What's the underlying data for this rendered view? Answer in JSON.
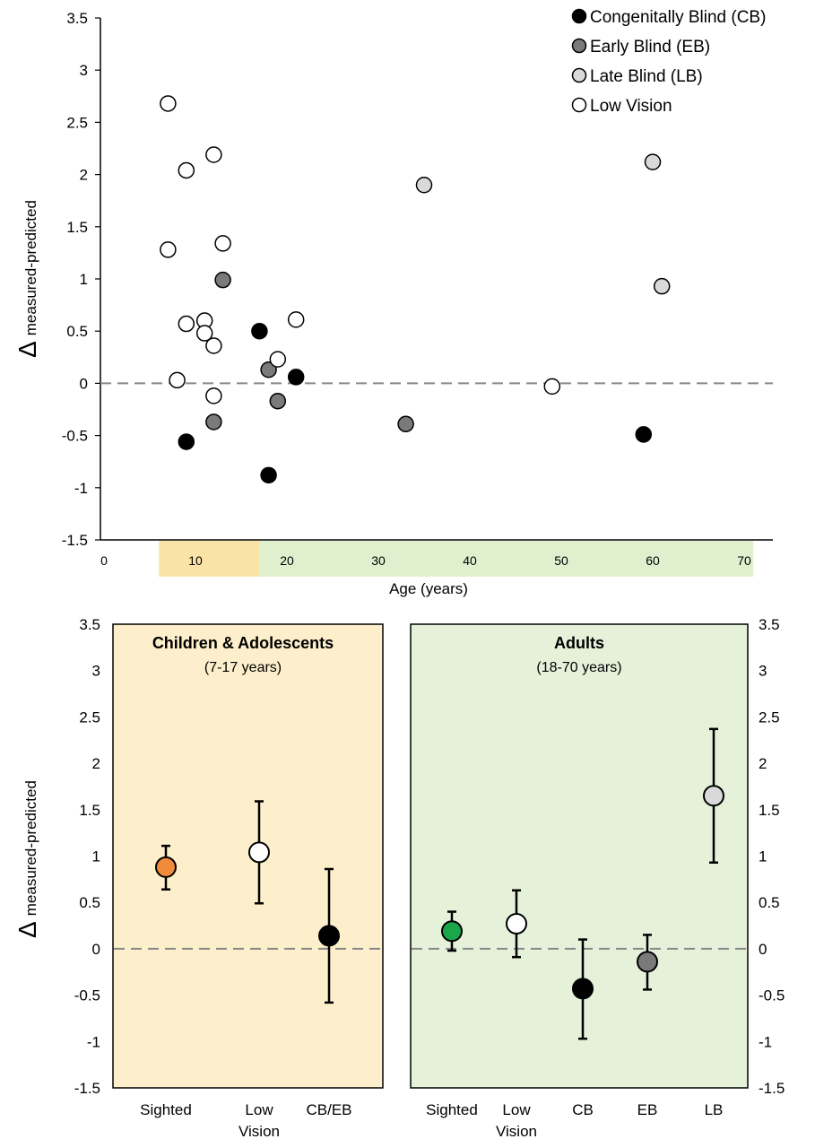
{
  "chart_data": [
    {
      "type": "scatter",
      "xlabel": "Age (years)",
      "ylabel_symbol": "Δ",
      "ylabel_sub": "measured-predicted",
      "xlim": [
        0,
        73
      ],
      "ylim": [
        -1.5,
        3.5
      ],
      "x_ticks": [
        "0",
        "10",
        "20",
        "30",
        "40",
        "50",
        "60",
        "70"
      ],
      "y_ticks": [
        "3.5",
        "3",
        "2.5",
        "2",
        "1.5",
        "1",
        "0.5",
        "0",
        "-0.5",
        "-1",
        "-1.5"
      ],
      "reference_line": 0,
      "age_bands": [
        {
          "range": [
            6,
            17
          ],
          "color": "#fbe3a8"
        },
        {
          "range": [
            17,
            71
          ],
          "color": "#e0f0cf"
        }
      ],
      "legend_position": "top-right",
      "series": [
        {
          "name": "Congenitally Blind (CB)",
          "color": "#000000",
          "x": [
            9,
            17,
            18,
            21,
            59
          ],
          "y": [
            -0.56,
            0.5,
            -0.88,
            0.06,
            -0.49
          ]
        },
        {
          "name": "Early Blind (EB)",
          "color": "#7a7a7a",
          "x": [
            13,
            12,
            18,
            19,
            33
          ],
          "y": [
            0.99,
            -0.37,
            0.13,
            -0.17,
            -0.39
          ]
        },
        {
          "name": "Late Blind (LB)",
          "color": "#d9d9d9",
          "x": [
            35,
            60,
            61
          ],
          "y": [
            1.9,
            2.12,
            0.93
          ]
        },
        {
          "name": "Low Vision",
          "color": "#ffffff",
          "x": [
            7,
            9,
            12,
            7,
            13,
            9,
            11,
            11,
            12,
            8,
            12,
            21,
            19,
            49
          ],
          "y": [
            2.68,
            2.04,
            2.19,
            1.28,
            1.34,
            0.57,
            0.6,
            0.48,
            0.36,
            0.03,
            -0.12,
            0.61,
            0.23,
            -0.03
          ]
        }
      ]
    },
    {
      "type": "scatter",
      "panel": "Children & Adolescents",
      "title": "Children & Adolescents",
      "subtitle": "(7-17 years)",
      "ylim": [
        -1.5,
        3.5
      ],
      "background": "#fdefcb",
      "categories": [
        [
          "Sighted"
        ],
        [
          "Low",
          "Vision"
        ],
        [
          "CB/EB"
        ]
      ],
      "points": [
        {
          "value": 0.88,
          "err_low": 0.64,
          "err_high": 1.11,
          "color": "#f08a3c"
        },
        {
          "value": 1.04,
          "err_low": 0.49,
          "err_high": 1.59,
          "color": "#ffffff"
        },
        {
          "value": 0.14,
          "err_low": -0.58,
          "err_high": 0.86,
          "color": "#000000"
        }
      ]
    },
    {
      "type": "scatter",
      "panel": "Adults",
      "title": "Adults",
      "subtitle": "(18-70 years)",
      "ylim": [
        -1.5,
        3.5
      ],
      "background": "#e6f1da",
      "categories": [
        [
          "Sighted"
        ],
        [
          "Low",
          "Vision"
        ],
        [
          "CB"
        ],
        [
          "EB"
        ],
        [
          "LB"
        ]
      ],
      "points": [
        {
          "value": 0.19,
          "err_low": -0.02,
          "err_high": 0.4,
          "color": "#1aa64b"
        },
        {
          "value": 0.27,
          "err_low": -0.09,
          "err_high": 0.63,
          "color": "#ffffff"
        },
        {
          "value": -0.43,
          "err_low": -0.97,
          "err_high": 0.1,
          "color": "#000000"
        },
        {
          "value": -0.14,
          "err_low": -0.44,
          "err_high": 0.15,
          "color": "#7a7a7a"
        },
        {
          "value": 1.65,
          "err_low": 0.93,
          "err_high": 2.37,
          "color": "#d9d9d9"
        }
      ]
    }
  ]
}
